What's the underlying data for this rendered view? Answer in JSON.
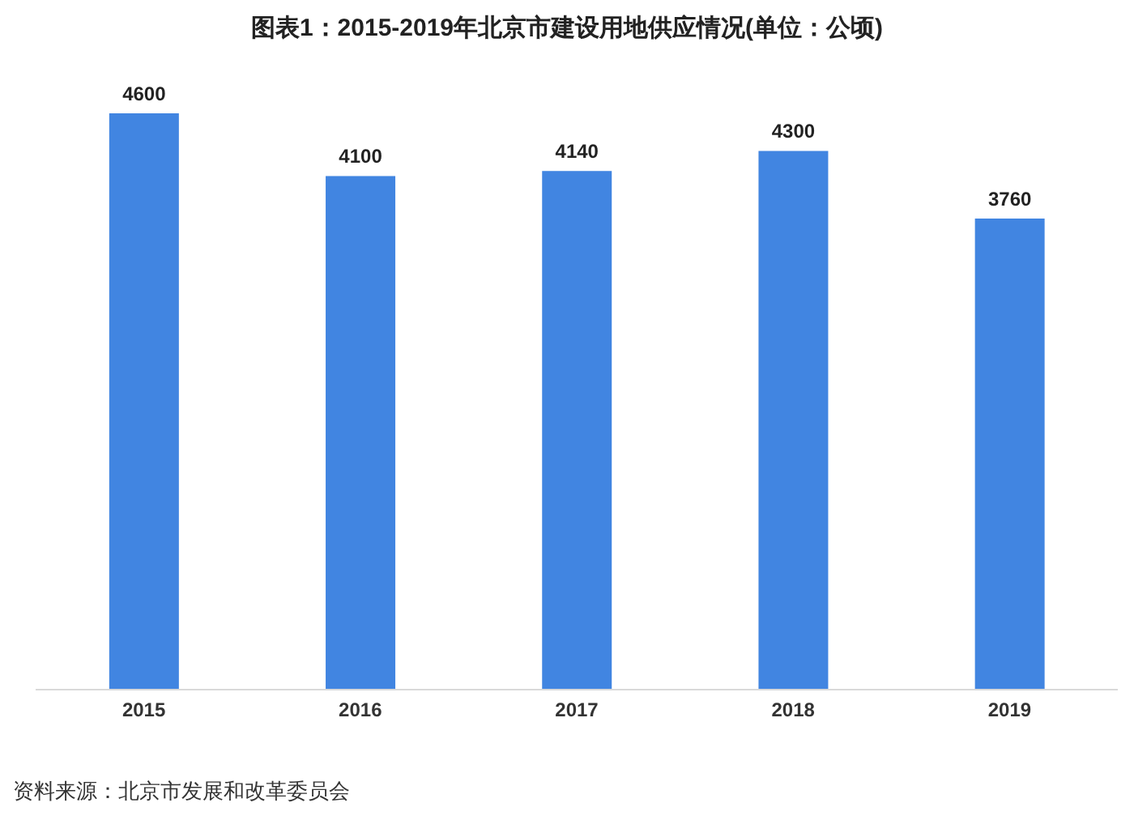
{
  "chart_data": {
    "type": "bar",
    "title": "图表1：2015-2019年北京市建设用地供应情况(单位：公顷)",
    "categories": [
      "2015",
      "2016",
      "2017",
      "2018",
      "2019"
    ],
    "values": [
      4600,
      4100,
      4140,
      4300,
      3760
    ],
    "color": "#4185e1",
    "data_labels": true,
    "grid": false,
    "tick_labels": "x",
    "annotations": [
      "资料来源：北京市发展和改革委员会"
    ]
  }
}
